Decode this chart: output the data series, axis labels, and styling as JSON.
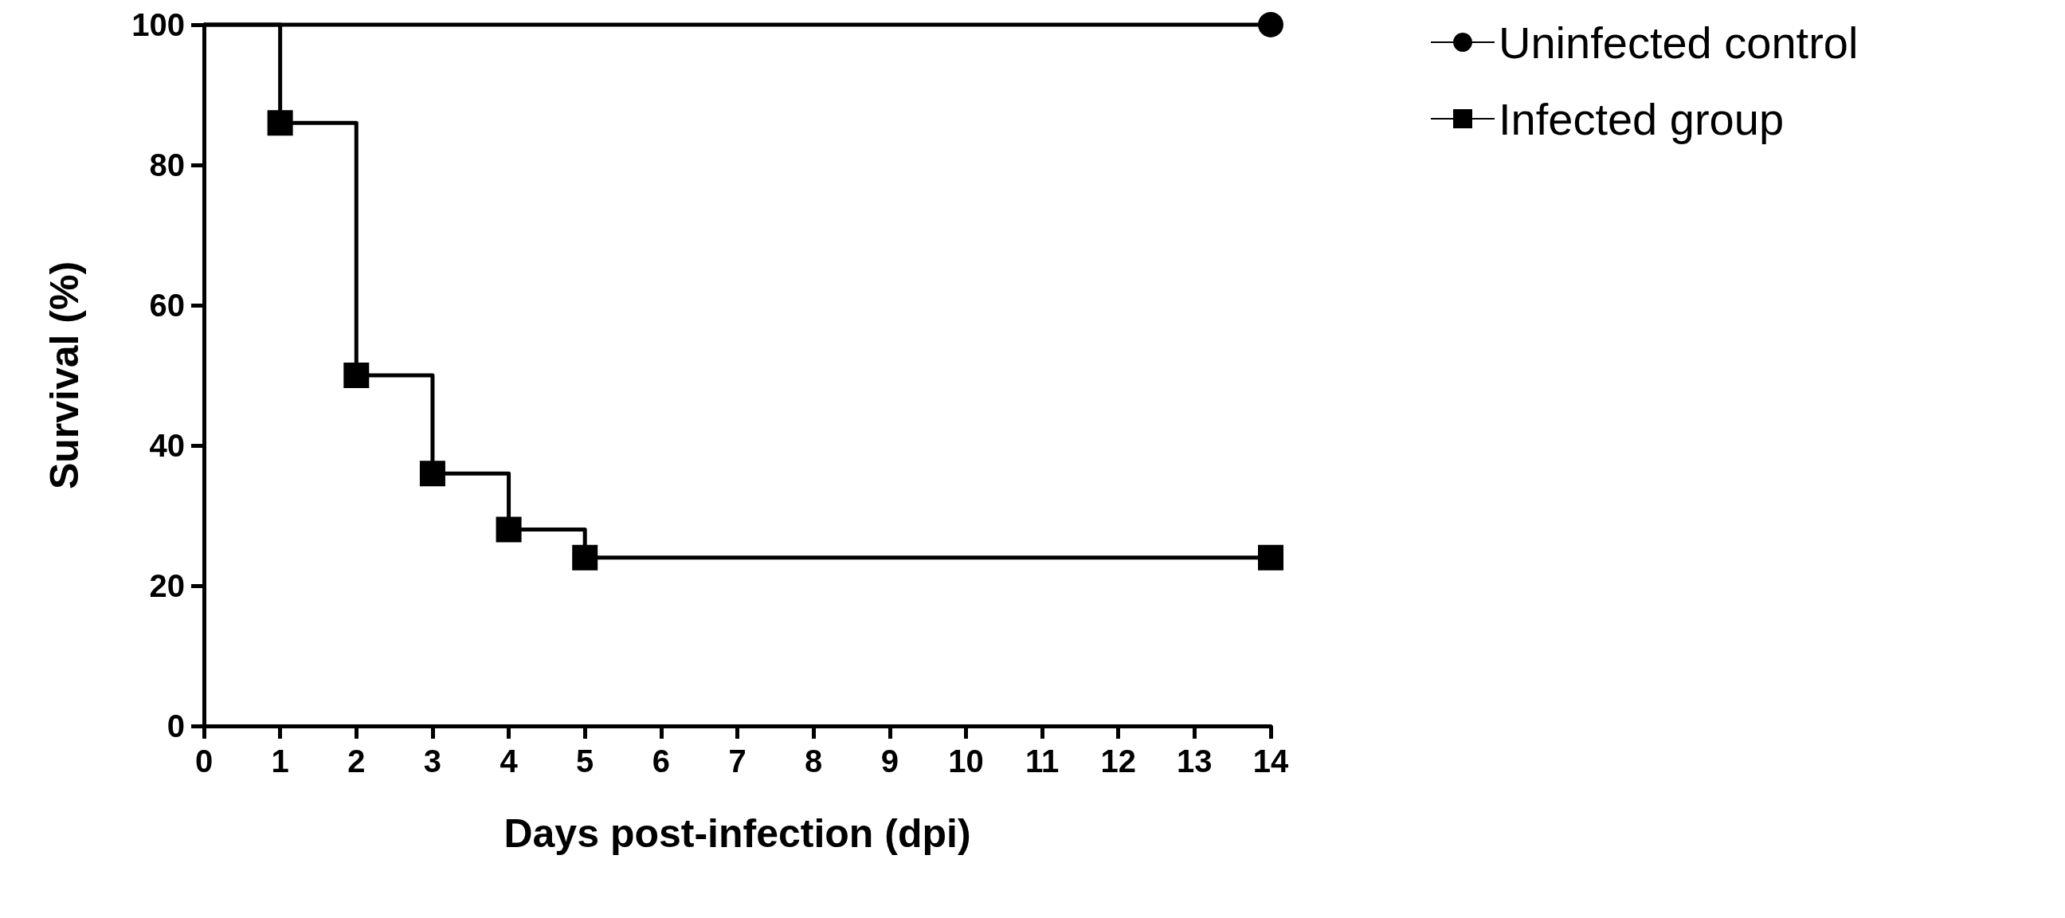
{
  "chart_data": {
    "type": "step",
    "xlabel": "Days post-infection (dpi)",
    "ylabel": "Survival (%)",
    "series": [
      {
        "name": "Uninfected control",
        "color": "#000000",
        "marker": "circle",
        "x": [
          0,
          14
        ],
        "values": [
          100,
          100
        ]
      },
      {
        "name": "Infected group",
        "color": "#000000",
        "marker": "square",
        "x": [
          0,
          1,
          2,
          3,
          4,
          5,
          14
        ],
        "values": [
          100,
          86,
          50,
          36,
          28,
          24,
          24
        ]
      }
    ],
    "xlim": [
      0,
      14
    ],
    "xticks": [
      0,
      1,
      2,
      3,
      4,
      5,
      6,
      7,
      8,
      9,
      10,
      11,
      12,
      13,
      14
    ],
    "ylim": [
      0,
      100
    ],
    "yticks": [
      0,
      20,
      40,
      60,
      80,
      100
    ],
    "grid": false,
    "legend": "right",
    "line_style": "solid"
  }
}
